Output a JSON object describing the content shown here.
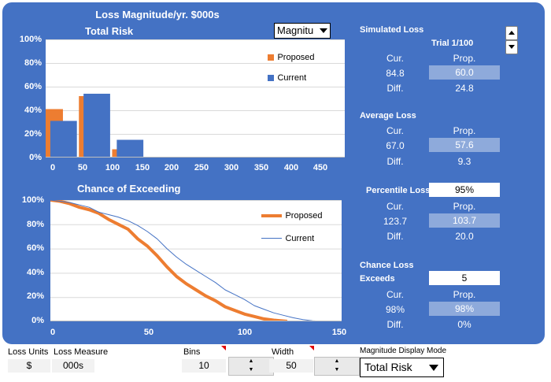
{
  "header": {
    "title": "Loss Magnitude/yr. $000s"
  },
  "chart_top": {
    "title": "Total Risk",
    "dropdown_value": "Magnitu"
  },
  "chart_bottom": {
    "title": "Chance of Exceeding"
  },
  "chart_data": [
    {
      "type": "bar",
      "title": "Total Risk",
      "x_ticks": [
        "0",
        "50",
        "100",
        "150",
        "200",
        "250",
        "300",
        "350",
        "400",
        "450"
      ],
      "y_ticks": [
        "0%",
        "20%",
        "40%",
        "60%",
        "80%",
        "100%"
      ],
      "ylim": [
        0,
        1
      ],
      "xlim": [
        0,
        450
      ],
      "bin_width": 50,
      "legend_position": "top-right",
      "colors": {
        "Proposed": "#ed7d31",
        "Current": "#4472c4"
      },
      "series": [
        {
          "name": "Proposed",
          "x": [
            0,
            50,
            100
          ],
          "values": [
            0.41,
            0.52,
            0.07
          ]
        },
        {
          "name": "Current",
          "x": [
            0,
            50,
            100
          ],
          "values": [
            0.31,
            0.54,
            0.15
          ]
        }
      ]
    },
    {
      "type": "line",
      "title": "Chance of Exceeding",
      "x_ticks": [
        "0",
        "50",
        "100",
        "150"
      ],
      "y_ticks": [
        "0%",
        "20%",
        "40%",
        "60%",
        "80%",
        "100%"
      ],
      "ylim": [
        0,
        1
      ],
      "xlim": [
        0,
        150
      ],
      "legend_position": "top-right",
      "colors": {
        "Proposed": "#ed7d31",
        "Current": "#4472c4"
      },
      "series": [
        {
          "name": "Proposed",
          "points": [
            [
              0,
              1.0
            ],
            [
              5,
              0.99
            ],
            [
              10,
              0.97
            ],
            [
              15,
              0.94
            ],
            [
              20,
              0.92
            ],
            [
              25,
              0.89
            ],
            [
              30,
              0.84
            ],
            [
              35,
              0.8
            ],
            [
              40,
              0.76
            ],
            [
              45,
              0.68
            ],
            [
              50,
              0.62
            ],
            [
              55,
              0.54
            ],
            [
              60,
              0.45
            ],
            [
              65,
              0.37
            ],
            [
              70,
              0.31
            ],
            [
              75,
              0.26
            ],
            [
              80,
              0.21
            ],
            [
              85,
              0.17
            ],
            [
              90,
              0.12
            ],
            [
              95,
              0.09
            ],
            [
              100,
              0.06
            ],
            [
              105,
              0.04
            ],
            [
              110,
              0.02
            ],
            [
              115,
              0.01
            ],
            [
              122,
              0.0
            ]
          ]
        },
        {
          "name": "Current",
          "points": [
            [
              0,
              1.0
            ],
            [
              5,
              0.99
            ],
            [
              10,
              0.98
            ],
            [
              15,
              0.96
            ],
            [
              20,
              0.94
            ],
            [
              25,
              0.9
            ],
            [
              30,
              0.88
            ],
            [
              35,
              0.86
            ],
            [
              40,
              0.83
            ],
            [
              45,
              0.79
            ],
            [
              50,
              0.74
            ],
            [
              55,
              0.68
            ],
            [
              60,
              0.6
            ],
            [
              65,
              0.53
            ],
            [
              70,
              0.47
            ],
            [
              75,
              0.42
            ],
            [
              80,
              0.37
            ],
            [
              85,
              0.32
            ],
            [
              90,
              0.26
            ],
            [
              95,
              0.22
            ],
            [
              100,
              0.18
            ],
            [
              105,
              0.13
            ],
            [
              110,
              0.1
            ],
            [
              115,
              0.07
            ],
            [
              120,
              0.05
            ],
            [
              125,
              0.03
            ],
            [
              130,
              0.015
            ],
            [
              135,
              0.005
            ],
            [
              140,
              0.0
            ]
          ]
        }
      ]
    }
  ],
  "simulated": {
    "title": "Simulated Loss",
    "trial_label": "Trial 1/100",
    "cur_label": "Cur.",
    "prop_label": "Prop.",
    "diff_label": "Diff.",
    "cur": "84.8",
    "prop": "60.0",
    "diff": "24.8"
  },
  "average": {
    "title": "Average Loss",
    "cur_label": "Cur.",
    "prop_label": "Prop.",
    "diff_label": "Diff.",
    "cur": "67.0",
    "prop": "57.6",
    "diff": "9.3"
  },
  "percentile": {
    "title": "Percentile Loss",
    "input": "95%",
    "cur_label": "Cur.",
    "prop_label": "Prop.",
    "diff_label": "Diff.",
    "cur": "123.7",
    "prop": "103.7",
    "diff": "20.0"
  },
  "chance": {
    "title_line1": "Chance Loss",
    "title_line2": "Exceeds",
    "input": "5",
    "cur_label": "Cur.",
    "prop_label": "Prop.",
    "diff_label": "Diff.",
    "cur": "98%",
    "prop": "98%",
    "diff": "0%"
  },
  "bottom": {
    "loss_units_label": "Loss Units",
    "loss_units_value": "$",
    "loss_measure_label": "Loss Measure",
    "loss_measure_value": "000s",
    "bins_label": "Bins",
    "bins_value": "10",
    "width_label": "Width",
    "width_value": "50",
    "mode_label": "Magnitude Display Mode",
    "mode_value": "Total Risk"
  }
}
